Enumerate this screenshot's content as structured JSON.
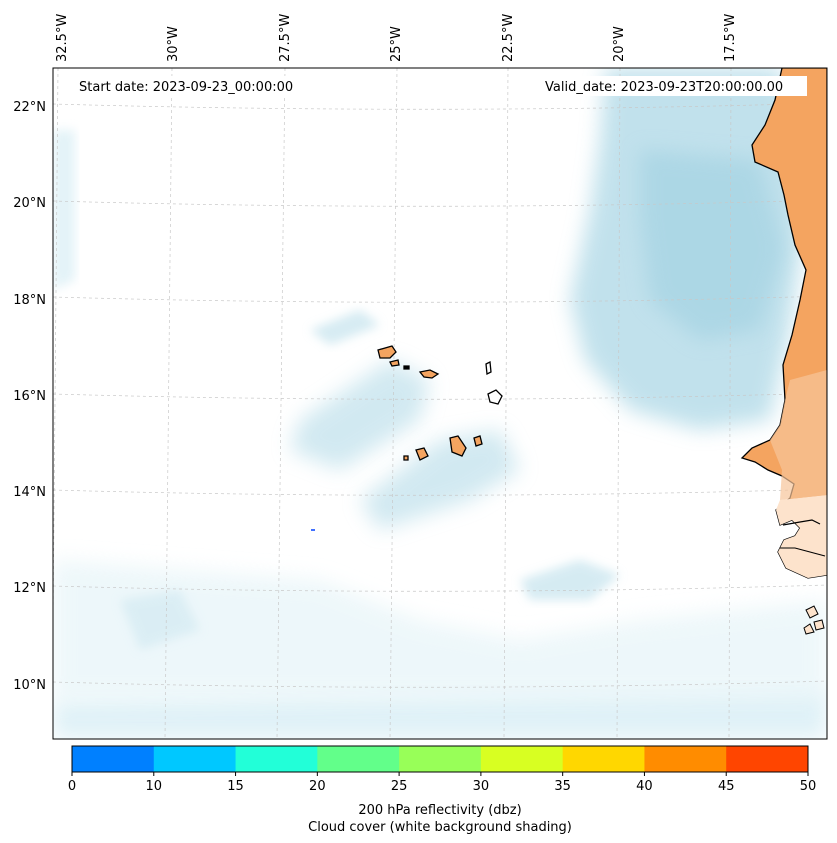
{
  "map": {
    "start_date": "Start date: 2023-09-23_00:00:00",
    "valid_date": "Valid_date: 2023-09-23T20:00:00.00",
    "lon_labels": [
      "32.5°W",
      "30°W",
      "27.5°W",
      "25°W",
      "22.5°W",
      "20°W",
      "17.5°W"
    ],
    "lat_labels": [
      "22°N",
      "20°N",
      "18°N",
      "16°N",
      "14°N",
      "12°N",
      "10°N"
    ],
    "gridlines": true,
    "islands": "Cape Verde",
    "land_color": "#f4a460",
    "cloud_color": "#add8e6"
  },
  "colorbar": {
    "ticks": [
      "0",
      "10",
      "15",
      "20",
      "25",
      "30",
      "35",
      "40",
      "45",
      "50"
    ],
    "colors": [
      "#0080ff",
      "#00c8ff",
      "#22ffd8",
      "#62ff8a",
      "#98ff58",
      "#d8ff22",
      "#ffd700",
      "#ff8c00",
      "#ff4500"
    ],
    "label_line1": "200 hPa reflectivity (dbz)",
    "label_line2": "Cloud cover (white background shading)"
  }
}
